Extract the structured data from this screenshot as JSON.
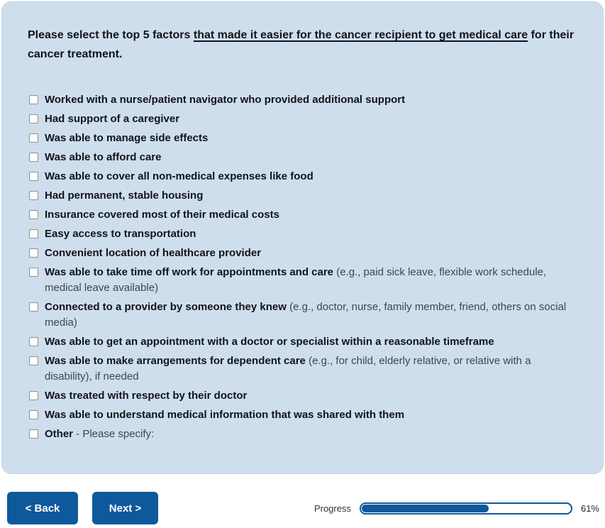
{
  "question": {
    "prefix": "Please select the top 5 factors ",
    "underlined": "that made it easier for the cancer recipient to get medical care",
    "suffix": " for their cancer treatment."
  },
  "items": [
    {
      "label": "Worked with a nurse/patient navigator who provided additional support",
      "note": ""
    },
    {
      "label": "Had support of a caregiver",
      "note": ""
    },
    {
      "label": "Was able to manage side effects",
      "note": ""
    },
    {
      "label": "Was able to afford care",
      "note": ""
    },
    {
      "label": "Was able to cover all non-medical expenses like food",
      "note": ""
    },
    {
      "label": "Had permanent, stable housing",
      "note": ""
    },
    {
      "label": "Insurance covered most of their medical costs",
      "note": ""
    },
    {
      "label": "Easy access to transportation",
      "note": ""
    },
    {
      "label": "Convenient location of healthcare provider",
      "note": ""
    },
    {
      "label": "Was able to take time off work for appointments and care",
      "note": " (e.g., paid sick leave, flexible work schedule, medical leave available)"
    },
    {
      "label": "Connected to a provider by someone they knew",
      "note": " (e.g., doctor, nurse, family member, friend, others on social media)"
    },
    {
      "label": "Was able to get an appointment with a doctor or specialist within a reasonable timeframe",
      "note": ""
    },
    {
      "label": "Was able to make arrangements for dependent care",
      "note": " (e.g., for child, elderly relative, or relative with a disability), if needed"
    },
    {
      "label": "Was treated with respect by their doctor",
      "note": ""
    },
    {
      "label": "Was able to understand medical information that was shared with them",
      "note": ""
    },
    {
      "label": "Other",
      "note": " - Please specify:"
    }
  ],
  "footer": {
    "back_label": "< Back",
    "next_label": "Next >",
    "progress_label": "Progress",
    "progress_percent": "61%",
    "progress_value": 61
  },
  "colors": {
    "accent_blue": "#0e599c",
    "card_background": "#cfdeed"
  }
}
